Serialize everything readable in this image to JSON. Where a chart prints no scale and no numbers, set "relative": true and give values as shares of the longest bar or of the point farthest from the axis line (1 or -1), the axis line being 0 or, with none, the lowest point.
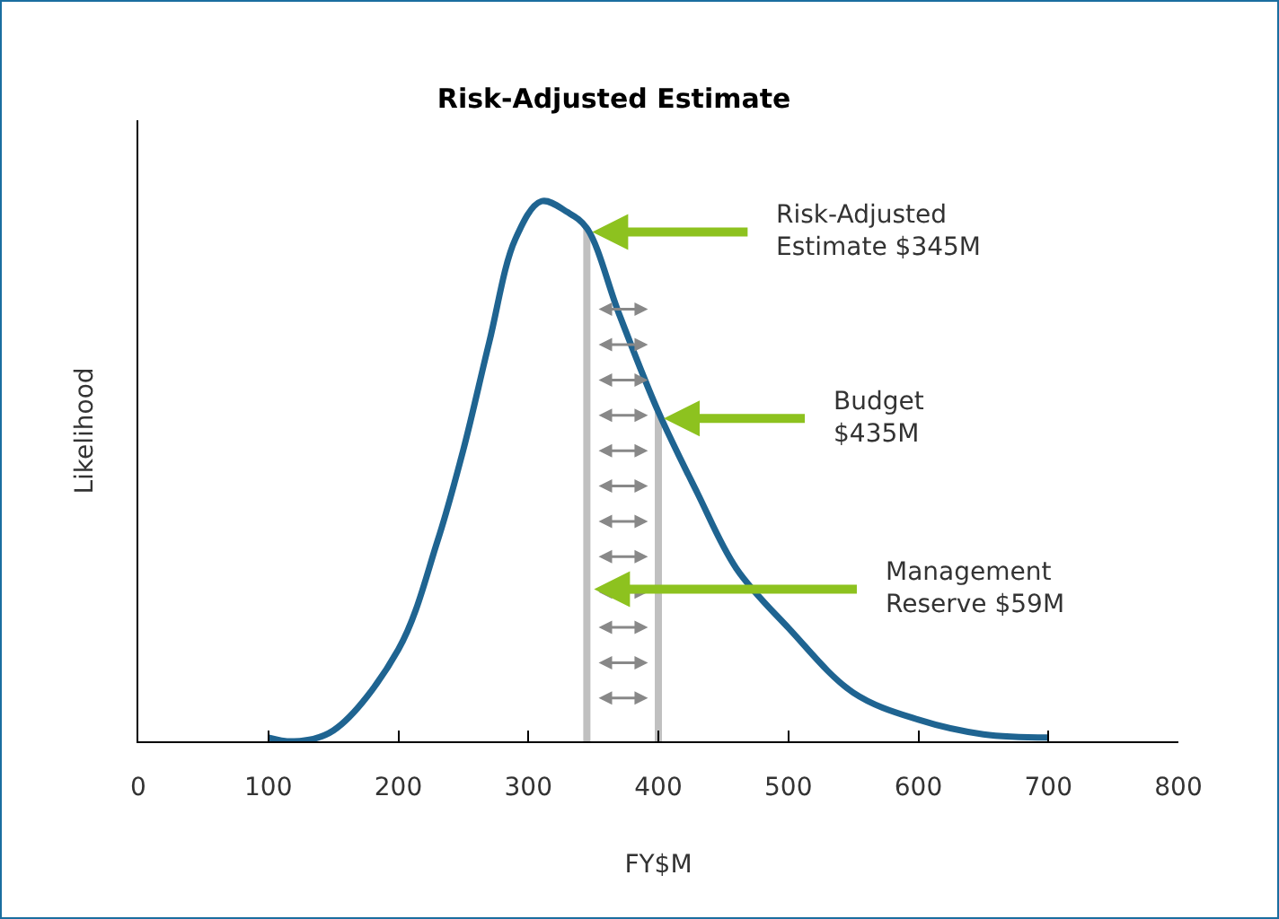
{
  "chart_data": {
    "type": "line",
    "title": "Risk-Adjusted Estimate",
    "xlabel": "FY$M",
    "ylabel": "Likelihood",
    "relative": true,
    "grid": false,
    "marker": "none",
    "line_style": "solid",
    "xlim": [
      0,
      800
    ],
    "xticks": [
      0,
      100,
      200,
      300,
      400,
      500,
      600,
      700,
      800
    ],
    "series": [
      {
        "color": "#1f6491",
        "x": [
          100,
          120,
          150,
          200,
          230,
          250,
          270,
          290,
          310,
          330,
          345,
          370,
          400,
          430,
          460,
          500,
          550,
          600,
          650,
          700
        ],
        "values": [
          0.007,
          0,
          0.02,
          0.17,
          0.37,
          0.54,
          0.74,
          0.93,
          1,
          0.98,
          0.95,
          0.79,
          0.61,
          0.46,
          0.32,
          0.21,
          0.09,
          0.04,
          0.013,
          0.007
        ]
      }
    ],
    "ref_lines": [
      {
        "axis": "x",
        "value": 345,
        "color": "#c0c0c0"
      },
      {
        "axis": "x",
        "value": 400,
        "color": "#c0c0c0"
      }
    ],
    "annotations": [
      "Risk-Adjusted\nEstimate $345M",
      "Budget\n$435M",
      "Management\nReserve $59M"
    ]
  }
}
